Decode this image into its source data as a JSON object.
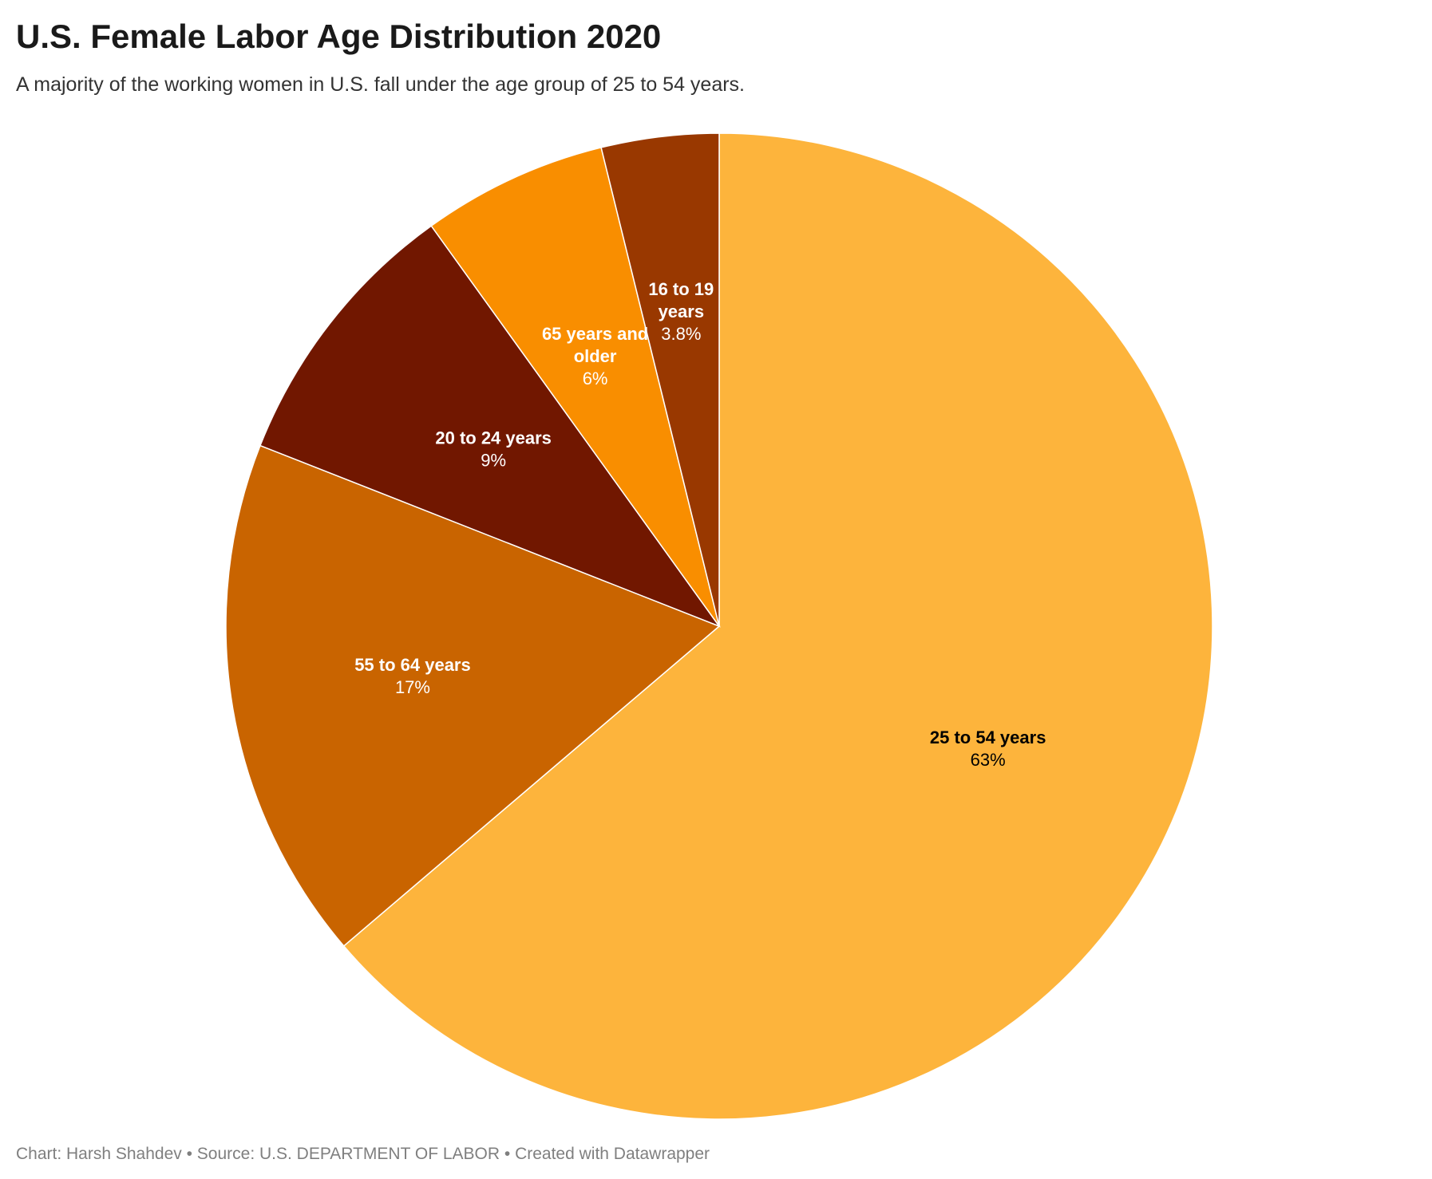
{
  "header": {
    "title": "U.S. Female Labor Age Distribution 2020",
    "subtitle": "A majority of the working women in U.S. fall under the age group of 25 to 54 years."
  },
  "footer": {
    "text": "Chart: Harsh Shahdev • Source: U.S. DEPARTMENT OF LABOR • Created with Datawrapper"
  },
  "chart_data": {
    "type": "pie",
    "title": "U.S. Female Labor Age Distribution 2020",
    "subtitle": "A majority of the working women in U.S. fall under the age group of 25 to 54 years.",
    "start": "12 o'clock, clockwise",
    "slices": [
      {
        "label": "25 to 54 years",
        "label_lines": [
          "25 to 54 years"
        ],
        "value": 63,
        "display": "63%",
        "color": "#fdb43c",
        "text_color": "#000000"
      },
      {
        "label": "55 to 64 years",
        "label_lines": [
          "55 to 64 years"
        ],
        "value": 17,
        "display": "17%",
        "color": "#c96400",
        "text_color": "#ffffff"
      },
      {
        "label": "20 to 24 years",
        "label_lines": [
          "20 to 24 years"
        ],
        "value": 9,
        "display": "9%",
        "color": "#711700",
        "text_color": "#ffffff"
      },
      {
        "label": "65 years and older",
        "label_lines": [
          "65 years and",
          "older"
        ],
        "value": 6,
        "display": "6%",
        "color": "#f98e00",
        "text_color": "#ffffff"
      },
      {
        "label": "16 to 19 years",
        "label_lines": [
          "16 to 19",
          "years"
        ],
        "value": 3.8,
        "display": "3.8%",
        "color": "#993800",
        "text_color": "#ffffff"
      }
    ]
  }
}
